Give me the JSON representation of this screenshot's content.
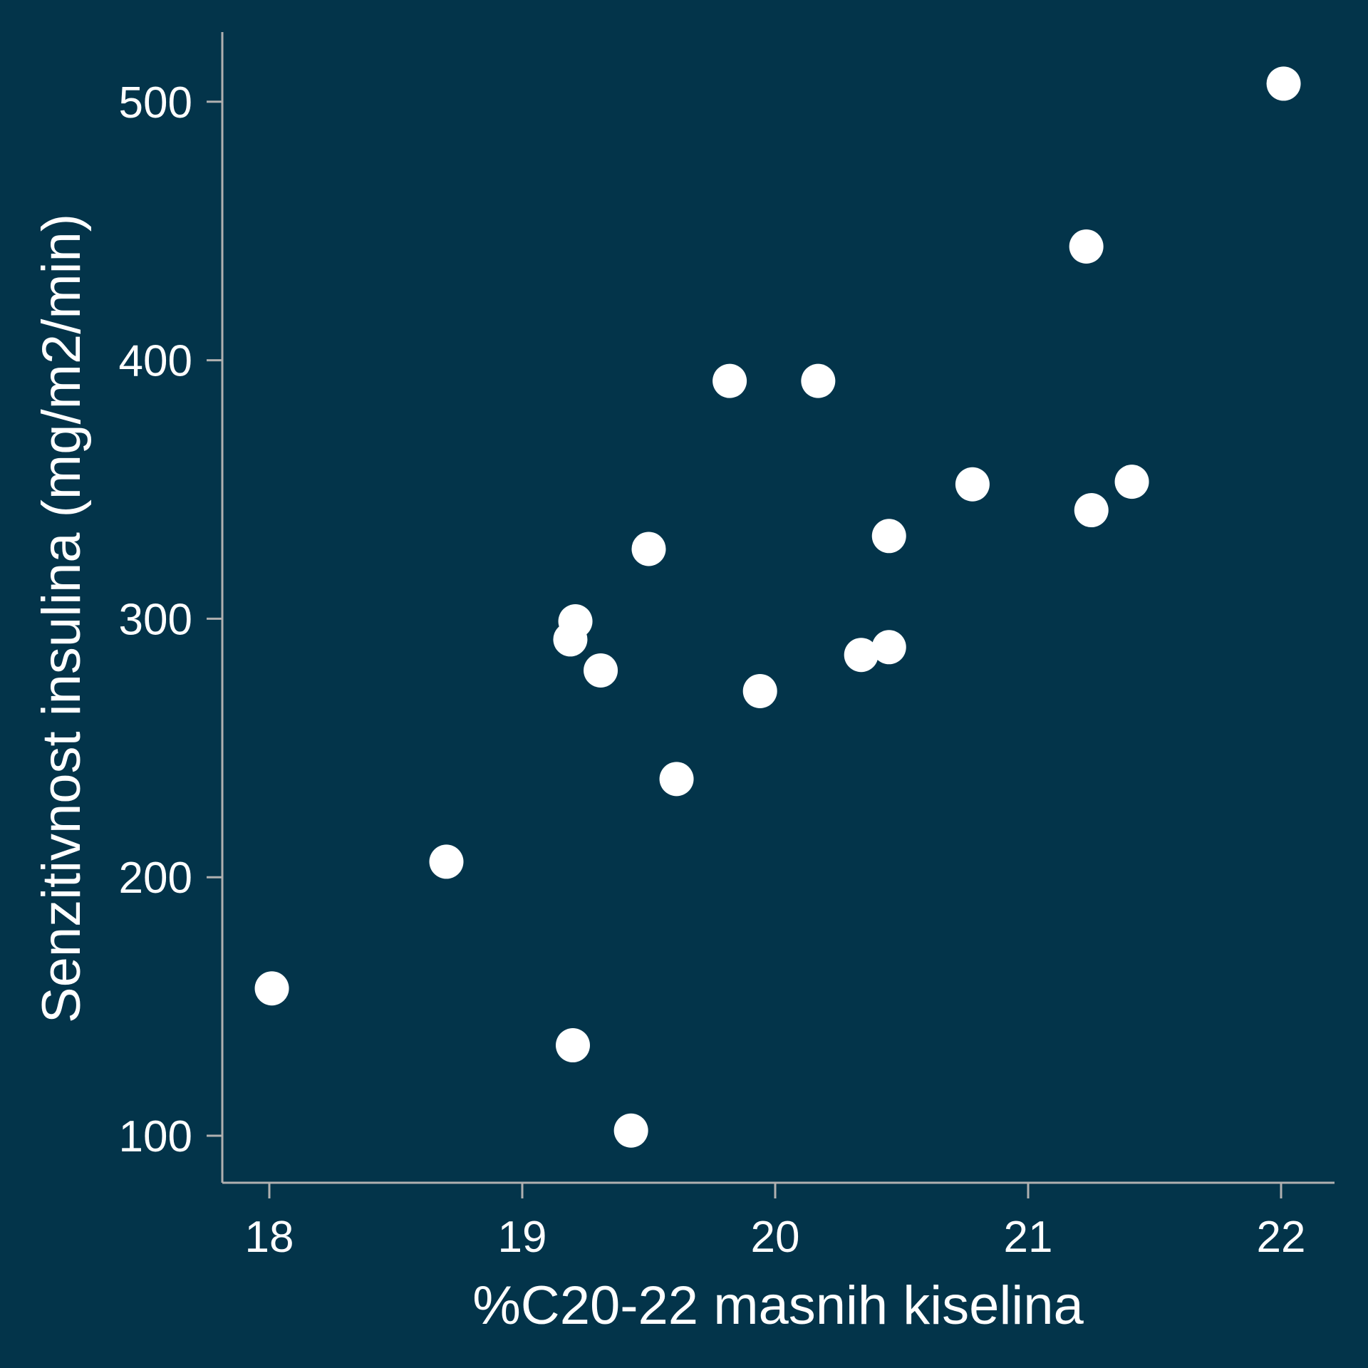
{
  "chart_data": {
    "type": "scatter",
    "title": "",
    "xlabel": "%C20-22 masnih kiselina",
    "ylabel": "Senzitivnost insulina (mg/m2/min)",
    "xlim": [
      17.81,
      22.21
    ],
    "ylim": [
      83,
      530
    ],
    "xticks": [
      18,
      19,
      20,
      21,
      22
    ],
    "yticks": [
      100,
      200,
      300,
      400,
      500
    ],
    "grid": false,
    "colors": {
      "background": "#03344a",
      "axis": "#b0b0b0",
      "marker": "#ffffff"
    },
    "points": [
      {
        "x": 18.01,
        "y": 157
      },
      {
        "x": 18.7,
        "y": 206
      },
      {
        "x": 19.2,
        "y": 135
      },
      {
        "x": 19.19,
        "y": 292
      },
      {
        "x": 19.21,
        "y": 299
      },
      {
        "x": 19.31,
        "y": 280
      },
      {
        "x": 19.43,
        "y": 102
      },
      {
        "x": 19.5,
        "y": 327
      },
      {
        "x": 19.61,
        "y": 238
      },
      {
        "x": 19.82,
        "y": 392
      },
      {
        "x": 19.94,
        "y": 272
      },
      {
        "x": 20.17,
        "y": 392
      },
      {
        "x": 20.34,
        "y": 286
      },
      {
        "x": 20.45,
        "y": 289
      },
      {
        "x": 20.45,
        "y": 332
      },
      {
        "x": 20.78,
        "y": 352
      },
      {
        "x": 21.23,
        "y": 444
      },
      {
        "x": 21.25,
        "y": 342
      },
      {
        "x": 21.41,
        "y": 353
      },
      {
        "x": 22.01,
        "y": 507
      }
    ]
  }
}
